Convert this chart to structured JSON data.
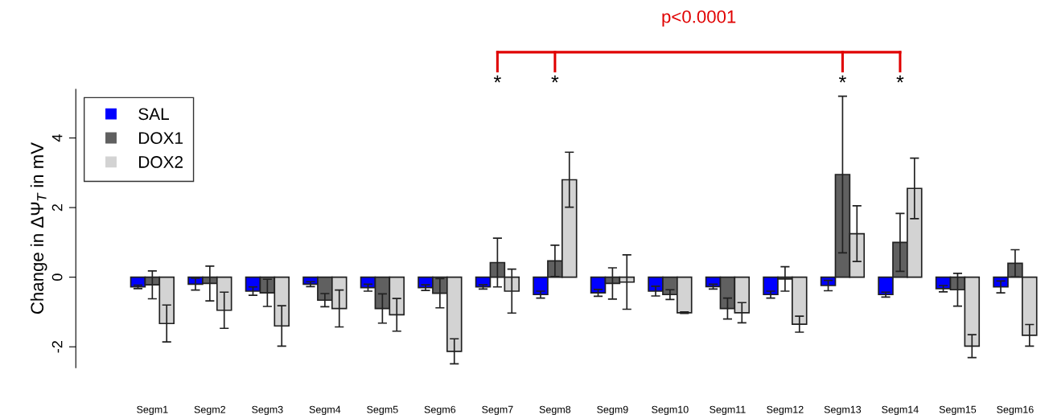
{
  "chart_data": {
    "type": "bar",
    "ylabel": "Change in ΔΨ$_{T}$ in mV",
    "categories": [
      "Segm1",
      "Segm2",
      "Segm3",
      "Segm4",
      "Segm5",
      "Segm6",
      "Segm7",
      "Segm8",
      "Segm9",
      "Segm10",
      "Segm11",
      "Segm12",
      "Segm13",
      "Segm14",
      "Segm15",
      "Segm16"
    ],
    "series": [
      {
        "name": "SAL",
        "color": "#0000ff",
        "values": [
          -0.28,
          -0.2,
          -0.4,
          -0.2,
          -0.3,
          -0.3,
          -0.28,
          -0.5,
          -0.45,
          -0.4,
          -0.27,
          -0.5,
          -0.24,
          -0.5,
          -0.33,
          -0.28
        ],
        "errors": [
          0.05,
          0.17,
          0.12,
          0.07,
          0.1,
          0.08,
          0.06,
          0.1,
          0.1,
          0.14,
          0.07,
          0.1,
          0.15,
          0.07,
          0.09,
          0.17
        ]
      },
      {
        "name": "DOX1",
        "color": "#606060",
        "values": [
          -0.22,
          -0.18,
          -0.45,
          -0.66,
          -0.9,
          -0.46,
          0.42,
          0.47,
          -0.18,
          -0.5,
          -0.9,
          -0.05,
          2.95,
          1.0,
          -0.36,
          0.4
        ],
        "errors": [
          0.4,
          0.5,
          0.39,
          0.19,
          0.42,
          0.42,
          0.7,
          0.45,
          0.45,
          0.14,
          0.3,
          0.35,
          2.25,
          0.83,
          0.47,
          0.39
        ]
      },
      {
        "name": "DOX2",
        "color": "#d3d3d3",
        "values": [
          -1.33,
          -0.95,
          -1.4,
          -0.9,
          -1.08,
          -2.13,
          -0.4,
          2.8,
          -0.14,
          -1.02,
          -1.02,
          -1.35,
          1.25,
          2.55,
          -1.98,
          -1.67
        ],
        "errors": [
          0.53,
          0.52,
          0.58,
          0.53,
          0.47,
          0.36,
          0.63,
          0.79,
          0.78,
          0.02,
          0.29,
          0.23,
          0.8,
          0.87,
          0.33,
          0.31
        ]
      }
    ],
    "ylim": [
      -2.6,
      5.4
    ],
    "yticks": [
      -2,
      0,
      2,
      4
    ],
    "legend": "top left",
    "grid": false,
    "annotations": [
      "p<0.0001",
      "*",
      "*",
      "*",
      "*"
    ]
  }
}
